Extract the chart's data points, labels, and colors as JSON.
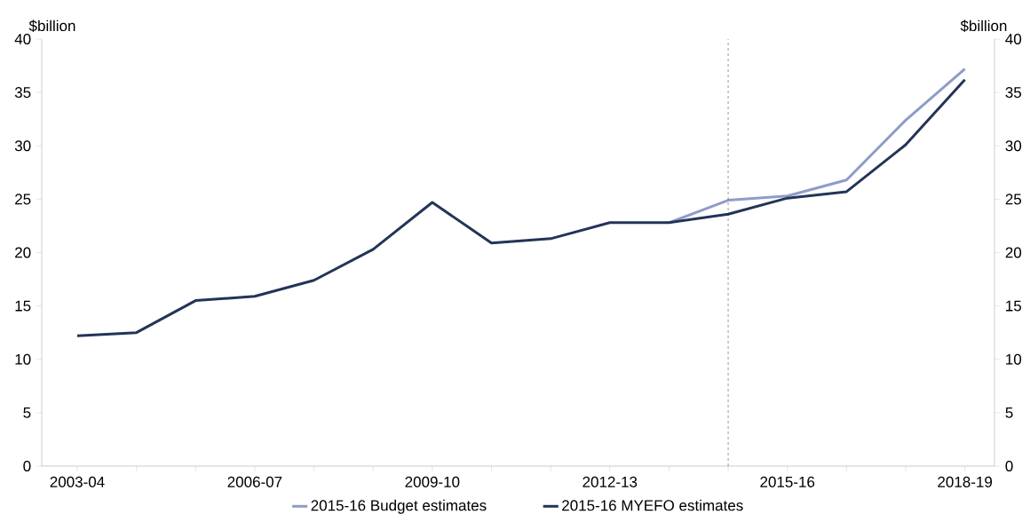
{
  "chart_data": {
    "type": "line",
    "ylabel": "$billion",
    "y2label": "$billion",
    "categories": [
      "2003-04",
      null,
      null,
      "2006-07",
      null,
      null,
      "2009-10",
      null,
      null,
      "2012-13",
      null,
      null,
      "2015-16",
      null,
      null,
      "2018-19"
    ],
    "series": [
      {
        "name": "2015-16 Budget estimates",
        "color": "#8e9cc8",
        "values": [
          null,
          null,
          null,
          null,
          null,
          null,
          null,
          null,
          null,
          null,
          22.8,
          24.9,
          25.3,
          26.8,
          32.4,
          37.2
        ]
      },
      {
        "name": "2015-16 MYEFO estimates",
        "color": "#233457",
        "values": [
          12.2,
          12.5,
          15.5,
          15.9,
          17.4,
          20.3,
          24.7,
          20.9,
          21.3,
          22.8,
          22.8,
          23.6,
          25.1,
          25.7,
          30.1,
          36.2
        ]
      }
    ],
    "ylim": [
      0,
      40
    ],
    "yticks": [
      0,
      5,
      10,
      15,
      20,
      25,
      30,
      35,
      40
    ],
    "y2lim": [
      0,
      40
    ],
    "y2ticks": [
      0,
      5,
      10,
      15,
      20,
      25,
      30,
      35,
      40
    ],
    "legend": "bottom",
    "marker": "none",
    "line_style": "solid"
  }
}
